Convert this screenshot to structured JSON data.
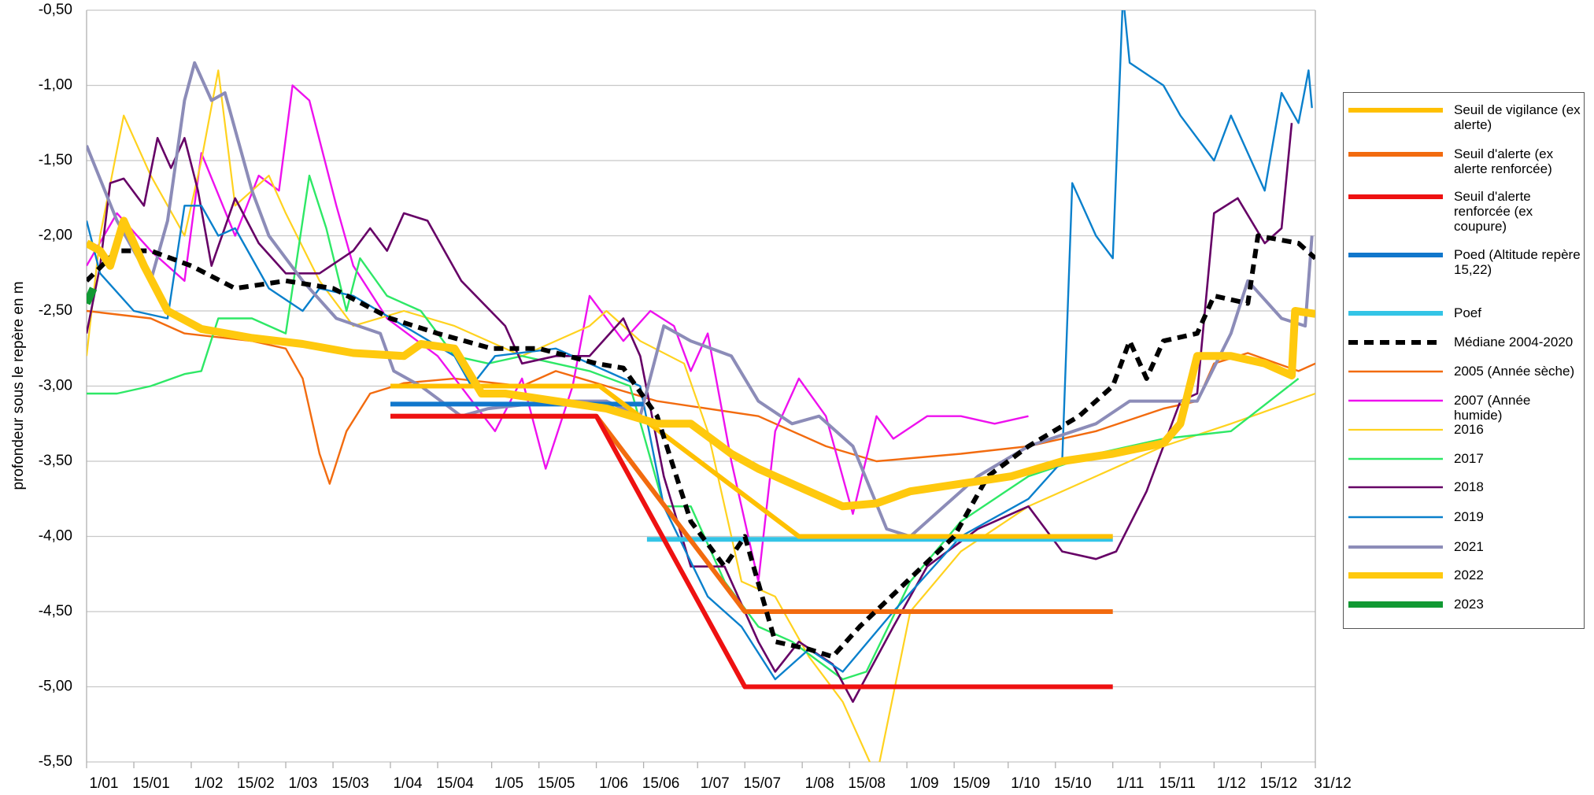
{
  "chart_data": {
    "type": "line",
    "y_label": "profondeur sous le repère en m",
    "xlim": [
      1,
      365
    ],
    "xticks": [
      {
        "value": 1,
        "label": "1/01"
      },
      {
        "value": 15,
        "label": "15/01"
      },
      {
        "value": 32,
        "label": "1/02"
      },
      {
        "value": 46,
        "label": "15/02"
      },
      {
        "value": 60,
        "label": "1/03"
      },
      {
        "value": 74,
        "label": "15/03"
      },
      {
        "value": 91,
        "label": "1/04"
      },
      {
        "value": 105,
        "label": "15/04"
      },
      {
        "value": 121,
        "label": "1/05"
      },
      {
        "value": 135,
        "label": "15/05"
      },
      {
        "value": 152,
        "label": "1/06"
      },
      {
        "value": 166,
        "label": "15/06"
      },
      {
        "value": 182,
        "label": "1/07"
      },
      {
        "value": 196,
        "label": "15/07"
      },
      {
        "value": 213,
        "label": "1/08"
      },
      {
        "value": 227,
        "label": "15/08"
      },
      {
        "value": 244,
        "label": "1/09"
      },
      {
        "value": 258,
        "label": "15/09"
      },
      {
        "value": 274,
        "label": "1/10"
      },
      {
        "value": 288,
        "label": "15/10"
      },
      {
        "value": 305,
        "label": "1/11"
      },
      {
        "value": 319,
        "label": "15/11"
      },
      {
        "value": 335,
        "label": "1/12"
      },
      {
        "value": 349,
        "label": "15/12"
      },
      {
        "value": 365,
        "label": "31/12"
      }
    ],
    "ylim": [
      -5.5,
      -0.5
    ],
    "yticks": [
      {
        "value": -0.5,
        "label": "-0,50"
      },
      {
        "value": -1,
        "label": "-1,00"
      },
      {
        "value": -1.5,
        "label": "-1,50"
      },
      {
        "value": -2,
        "label": "-2,00"
      },
      {
        "value": -2.5,
        "label": "-2,50"
      },
      {
        "value": -3,
        "label": "-3,00"
      },
      {
        "value": -3.5,
        "label": "-3,50"
      },
      {
        "value": -4,
        "label": "-4,00"
      },
      {
        "value": -4.5,
        "label": "-4,50"
      },
      {
        "value": -5,
        "label": "-5,00"
      },
      {
        "value": -5.5,
        "label": "-5,50"
      }
    ],
    "grid": true,
    "legend": "right",
    "series": [
      {
        "name": "Seuil de vigilance (ex alerte)",
        "color": "#ffc000",
        "x": [
          91,
          153,
          212,
          305
        ],
        "values": [
          -3.0,
          -3.0,
          -4.0,
          -4.0
        ]
      },
      {
        "name": "Seuil d'alerte (ex alerte renforcée)",
        "color": "#f26b0f",
        "x": [
          91,
          152,
          196,
          305
        ],
        "values": [
          -3.2,
          -3.2,
          -4.5,
          -4.5
        ]
      },
      {
        "name": "Seuil d'alerte renforcée (ex coupure)",
        "color": "#ee1111",
        "x": [
          91,
          152,
          196,
          305
        ],
        "values": [
          -3.2,
          -3.2,
          -5.0,
          -5.0
        ]
      },
      {
        "name": "Poed (Altitude repère 15,22)",
        "color": "#1177cc",
        "x": [
          91,
          166
        ],
        "values": [
          -3.12,
          -3.12
        ]
      },
      {
        "name": "Poef",
        "color": "#33c4e6",
        "x": [
          167,
          305
        ],
        "values": [
          -4.02,
          -4.02
        ]
      },
      {
        "name": "Médiane 2004-2020",
        "color": "#000000",
        "line_style": "dashed",
        "x": [
          1,
          10,
          20,
          32,
          45,
          60,
          74,
          91,
          105,
          121,
          135,
          152,
          160,
          170,
          180,
          190,
          196,
          205,
          215,
          222,
          230,
          244,
          258,
          268,
          280,
          295,
          305,
          310,
          315,
          320,
          330,
          335,
          345,
          348,
          360,
          365
        ],
        "values": [
          -2.3,
          -2.1,
          -2.1,
          -2.2,
          -2.35,
          -2.3,
          -2.35,
          -2.55,
          -2.65,
          -2.75,
          -2.75,
          -2.85,
          -2.88,
          -3.2,
          -3.9,
          -4.2,
          -4.0,
          -4.7,
          -4.75,
          -4.8,
          -4.6,
          -4.3,
          -4.0,
          -3.6,
          -3.4,
          -3.2,
          -3.0,
          -2.7,
          -2.95,
          -2.7,
          -2.65,
          -2.4,
          -2.45,
          -2.0,
          -2.05,
          -2.15
        ]
      },
      {
        "name": "2005 (Année sèche)",
        "color": "#f26b0f",
        "x": [
          1,
          20,
          30,
          50,
          60,
          65,
          70,
          73,
          78,
          85,
          95,
          110,
          130,
          140,
          152,
          170,
          200,
          220,
          235,
          260,
          280,
          300,
          320,
          330,
          335,
          345,
          360,
          365
        ],
        "values": [
          -2.5,
          -2.55,
          -2.65,
          -2.7,
          -2.75,
          -2.95,
          -3.45,
          -3.65,
          -3.3,
          -3.05,
          -2.98,
          -2.95,
          -3.0,
          -2.9,
          -2.98,
          -3.1,
          -3.2,
          -3.4,
          -3.5,
          -3.45,
          -3.4,
          -3.3,
          -3.15,
          -3.1,
          -2.85,
          -2.78,
          -2.9,
          -2.85
        ]
      },
      {
        "name": "2007 (Année humide)",
        "color": "#ee11ee",
        "x": [
          1,
          10,
          20,
          30,
          35,
          45,
          52,
          58,
          62,
          67,
          75,
          80,
          90,
          105,
          122,
          130,
          137,
          145,
          150,
          160,
          168,
          175,
          180,
          185,
          192,
          200,
          205,
          212,
          220,
          228,
          235,
          240,
          250,
          260,
          270,
          280
        ],
        "values": [
          -2.2,
          -1.85,
          -2.1,
          -2.3,
          -1.45,
          -2.0,
          -1.6,
          -1.7,
          -1.0,
          -1.1,
          -1.8,
          -2.2,
          -2.55,
          -2.8,
          -3.3,
          -2.95,
          -3.55,
          -3.0,
          -2.4,
          -2.7,
          -2.5,
          -2.6,
          -2.9,
          -2.65,
          -3.5,
          -4.3,
          -3.3,
          -2.95,
          -3.2,
          -3.85,
          -3.2,
          -3.35,
          -3.2,
          -3.2,
          -3.25,
          -3.2
        ]
      },
      {
        "name": "2016",
        "color": "#ffd21f",
        "x": [
          1,
          5,
          12,
          20,
          30,
          35,
          40,
          45,
          55,
          60,
          70,
          80,
          95,
          110,
          130,
          150,
          155,
          165,
          178,
          185,
          195,
          205,
          215,
          225,
          235,
          245,
          260,
          280,
          300,
          320,
          340,
          365
        ],
        "values": [
          -2.8,
          -2.0,
          -1.2,
          -1.6,
          -2.0,
          -1.5,
          -0.9,
          -1.8,
          -1.6,
          -1.85,
          -2.3,
          -2.6,
          -2.5,
          -2.6,
          -2.8,
          -2.6,
          -2.5,
          -2.7,
          -2.85,
          -3.3,
          -4.3,
          -4.4,
          -4.8,
          -5.1,
          -5.6,
          -4.5,
          -4.1,
          -3.8,
          -3.6,
          -3.4,
          -3.25,
          -3.05
        ]
      },
      {
        "name": "2017",
        "color": "#2ee866",
        "x": [
          1,
          10,
          20,
          30,
          35,
          40,
          50,
          60,
          63,
          67,
          72,
          78,
          82,
          90,
          100,
          110,
          120,
          130,
          150,
          162,
          172,
          180,
          190,
          200,
          210,
          225,
          232,
          245,
          260,
          280,
          300,
          320,
          340,
          360
        ],
        "values": [
          -3.05,
          -3.05,
          -3.0,
          -2.92,
          -2.9,
          -2.55,
          -2.55,
          -2.65,
          -2.2,
          -1.6,
          -1.95,
          -2.5,
          -2.15,
          -2.4,
          -2.5,
          -2.8,
          -2.85,
          -2.8,
          -2.9,
          -3.0,
          -3.8,
          -3.8,
          -4.3,
          -4.6,
          -4.7,
          -4.95,
          -4.9,
          -4.3,
          -3.9,
          -3.6,
          -3.45,
          -3.35,
          -3.3,
          -2.95
        ]
      },
      {
        "name": "2018",
        "color": "#660066",
        "x": [
          1,
          5,
          8,
          12,
          18,
          22,
          26,
          30,
          34,
          38,
          45,
          52,
          60,
          70,
          80,
          85,
          90,
          95,
          102,
          112,
          125,
          130,
          140,
          150,
          160,
          165,
          172,
          180,
          190,
          200,
          205,
          212,
          222,
          228,
          240,
          250,
          265,
          280,
          290,
          300,
          306,
          315,
          325,
          330,
          335,
          342,
          350,
          355,
          358
        ],
        "values": [
          -2.65,
          -2.2,
          -1.65,
          -1.62,
          -1.8,
          -1.35,
          -1.55,
          -1.35,
          -1.7,
          -2.2,
          -1.75,
          -2.05,
          -2.25,
          -2.25,
          -2.1,
          -1.95,
          -2.1,
          -1.85,
          -1.9,
          -2.3,
          -2.6,
          -2.85,
          -2.8,
          -2.8,
          -2.55,
          -2.8,
          -3.6,
          -4.2,
          -4.2,
          -4.7,
          -4.9,
          -4.7,
          -4.85,
          -5.1,
          -4.6,
          -4.2,
          -3.95,
          -3.8,
          -4.1,
          -4.15,
          -4.1,
          -3.7,
          -3.1,
          -3.05,
          -1.85,
          -1.75,
          -2.05,
          -1.95,
          -1.25
        ]
      },
      {
        "name": "2019",
        "color": "#0a80cc",
        "x": [
          1,
          5,
          15,
          25,
          30,
          35,
          40,
          45,
          55,
          65,
          70,
          80,
          95,
          110,
          115,
          122,
          140,
          155,
          165,
          172,
          185,
          195,
          205,
          215,
          225,
          240,
          260,
          280,
          290,
          293,
          300,
          305,
          308,
          310,
          320,
          325,
          335,
          340,
          350,
          355,
          360,
          363,
          364
        ],
        "values": [
          -1.9,
          -2.25,
          -2.5,
          -2.55,
          -1.8,
          -1.8,
          -2.0,
          -1.95,
          -2.35,
          -2.5,
          -2.35,
          -2.4,
          -2.6,
          -2.8,
          -3.0,
          -2.8,
          -2.75,
          -2.9,
          -3.0,
          -3.8,
          -4.4,
          -4.6,
          -4.95,
          -4.75,
          -4.9,
          -4.5,
          -4.0,
          -3.75,
          -3.5,
          -1.65,
          -2.0,
          -2.15,
          -0.4,
          -0.85,
          -1.0,
          -1.2,
          -1.5,
          -1.2,
          -1.7,
          -1.05,
          -1.25,
          -0.9,
          -1.15
        ]
      },
      {
        "name": "2021",
        "color": "#8c8cb8",
        "x": [
          1,
          10,
          20,
          25,
          30,
          33,
          38,
          42,
          50,
          55,
          65,
          75,
          88,
          92,
          100,
          112,
          120,
          140,
          155,
          165,
          172,
          180,
          192,
          200,
          210,
          218,
          228,
          238,
          245,
          255,
          265,
          280,
          300,
          310,
          330,
          340,
          345,
          355,
          362,
          364
        ],
        "values": [
          -1.4,
          -1.9,
          -2.3,
          -1.9,
          -1.1,
          -0.85,
          -1.1,
          -1.05,
          -1.7,
          -2.0,
          -2.3,
          -2.55,
          -2.65,
          -2.9,
          -3.0,
          -3.2,
          -3.15,
          -3.1,
          -3.1,
          -3.2,
          -2.6,
          -2.7,
          -2.8,
          -3.1,
          -3.25,
          -3.2,
          -3.4,
          -3.95,
          -4.0,
          -3.8,
          -3.6,
          -3.4,
          -3.25,
          -3.1,
          -3.1,
          -2.65,
          -2.3,
          -2.55,
          -2.6,
          -2.0
        ]
      },
      {
        "name": "2022",
        "color": "#ffc90e",
        "x": [
          1,
          5,
          8,
          12,
          18,
          25,
          35,
          50,
          65,
          80,
          95,
          100,
          110,
          118,
          125,
          140,
          155,
          170,
          180,
          192,
          200,
          215,
          225,
          235,
          245,
          260,
          275,
          290,
          305,
          320,
          325,
          330,
          340,
          350,
          358,
          359,
          365
        ],
        "values": [
          -2.05,
          -2.1,
          -2.2,
          -1.9,
          -2.2,
          -2.5,
          -2.62,
          -2.68,
          -2.72,
          -2.78,
          -2.8,
          -2.72,
          -2.75,
          -3.05,
          -3.05,
          -3.1,
          -3.15,
          -3.25,
          -3.25,
          -3.45,
          -3.55,
          -3.7,
          -3.8,
          -3.78,
          -3.7,
          -3.65,
          -3.6,
          -3.5,
          -3.45,
          -3.38,
          -3.25,
          -2.8,
          -2.8,
          -2.85,
          -2.93,
          -2.5,
          -2.52
        ]
      },
      {
        "name": "2023",
        "color": "#119933",
        "x": [
          1,
          3
        ],
        "values": [
          -2.45,
          -2.35
        ]
      }
    ]
  }
}
